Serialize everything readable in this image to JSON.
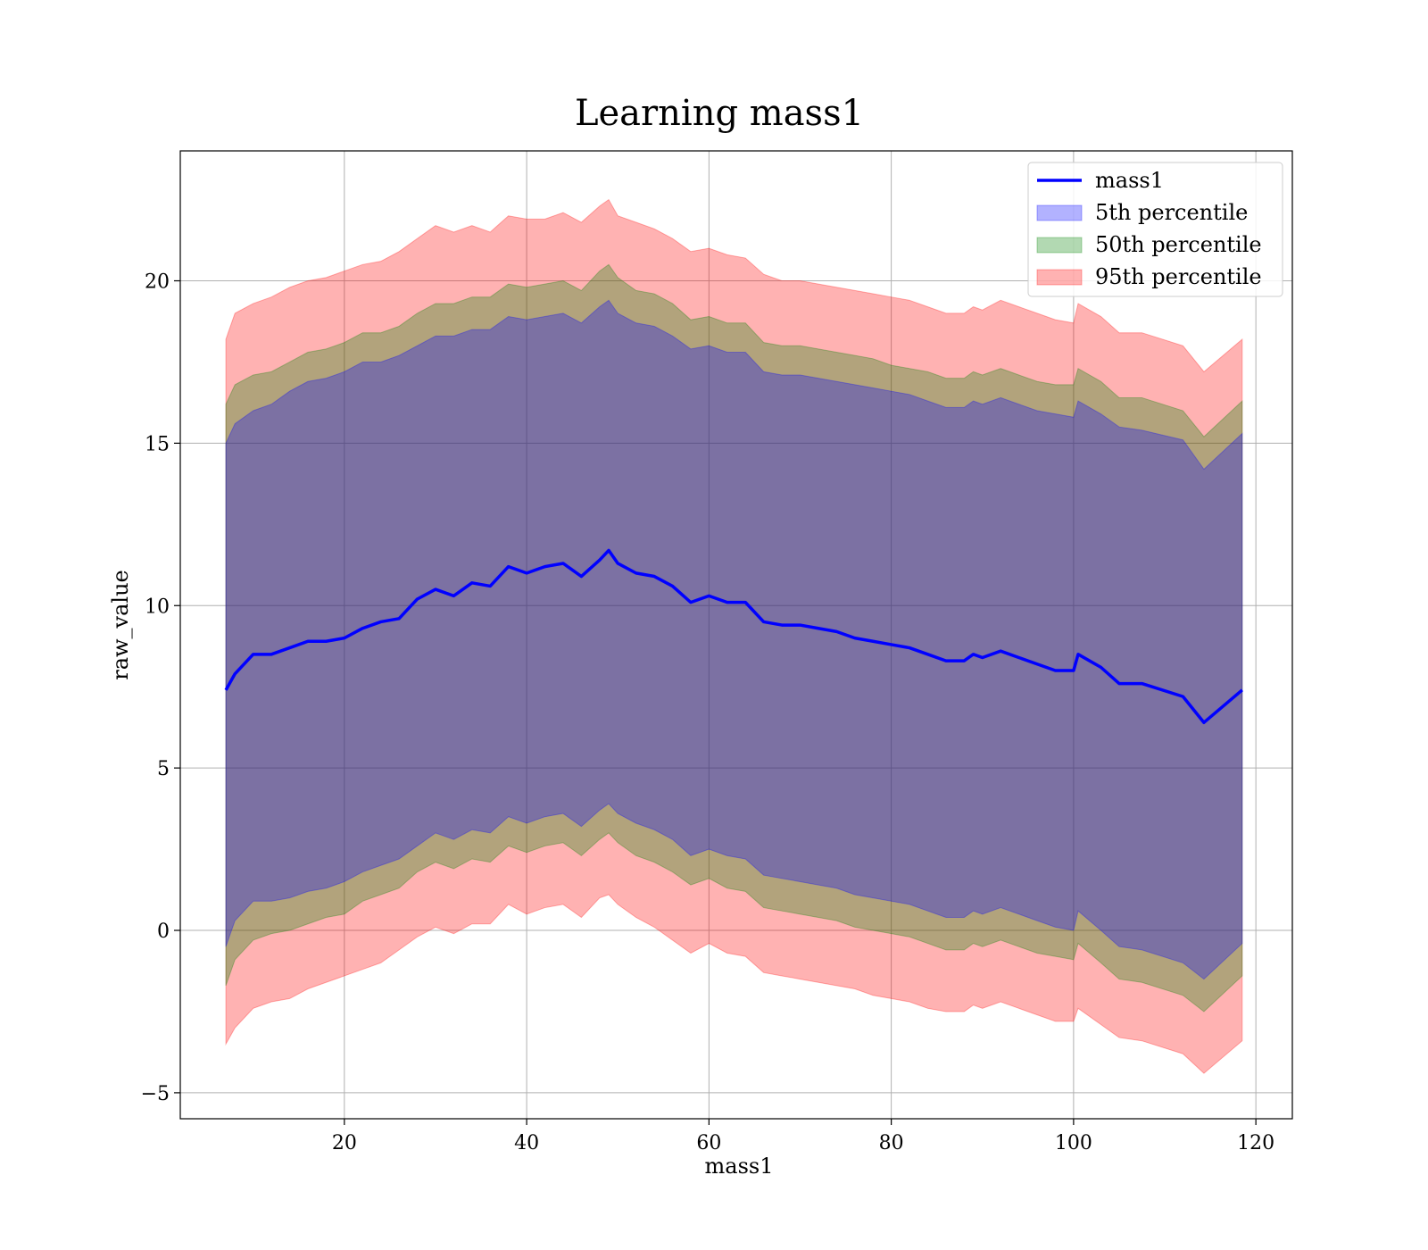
{
  "chart_data": {
    "type": "area",
    "title": "Learning mass1",
    "xlabel": "mass1",
    "ylabel": "raw_value",
    "xlim": [
      2,
      124
    ],
    "ylim": [
      -5.8,
      24
    ],
    "xticks": [
      20,
      40,
      60,
      80,
      100,
      120
    ],
    "yticks": [
      -5,
      0,
      5,
      10,
      15,
      20
    ],
    "grid": true,
    "legend_position": "top-right",
    "x": [
      7,
      8,
      10,
      12,
      14,
      16,
      18,
      20,
      22,
      24,
      26,
      28,
      30,
      32,
      34,
      36,
      38,
      40,
      42,
      44,
      46,
      48,
      49,
      50,
      52,
      54,
      56,
      58,
      60,
      62,
      64,
      66,
      68,
      70,
      72,
      74,
      76,
      78,
      80,
      82,
      84,
      86,
      88,
      89,
      90,
      92,
      94,
      96,
      98,
      100,
      100.5,
      103,
      105,
      107.5,
      112,
      114.3,
      118.5
    ],
    "series": [
      {
        "name": "mass1",
        "kind": "line",
        "color": "#0000ff",
        "values": [
          7.4,
          7.9,
          8.5,
          8.5,
          8.7,
          8.9,
          8.9,
          9.0,
          9.3,
          9.5,
          9.6,
          10.2,
          10.5,
          10.3,
          10.7,
          10.6,
          11.2,
          11.0,
          11.2,
          11.3,
          10.9,
          11.4,
          11.7,
          11.3,
          11.0,
          10.9,
          10.6,
          10.1,
          10.3,
          10.1,
          10.1,
          9.5,
          9.4,
          9.4,
          9.3,
          9.2,
          9.0,
          8.9,
          8.8,
          8.7,
          8.5,
          8.3,
          8.3,
          8.5,
          8.4,
          8.6,
          8.4,
          8.2,
          8.0,
          8.0,
          8.5,
          8.1,
          7.6,
          7.6,
          7.2,
          6.4,
          7.4
        ]
      },
      {
        "name": "5th percentile",
        "kind": "band",
        "color": "#0000ff",
        "upper": [
          15.0,
          15.6,
          16.0,
          16.2,
          16.6,
          16.9,
          17.0,
          17.2,
          17.5,
          17.5,
          17.7,
          18.0,
          18.3,
          18.3,
          18.5,
          18.5,
          18.9,
          18.8,
          18.9,
          19.0,
          18.7,
          19.2,
          19.4,
          19.0,
          18.7,
          18.6,
          18.3,
          17.9,
          18.0,
          17.8,
          17.8,
          17.2,
          17.1,
          17.1,
          17.0,
          16.9,
          16.8,
          16.7,
          16.6,
          16.5,
          16.3,
          16.1,
          16.1,
          16.3,
          16.2,
          16.4,
          16.2,
          16.0,
          15.9,
          15.8,
          16.3,
          15.9,
          15.5,
          15.4,
          15.1,
          14.2,
          15.3
        ],
        "lower": [
          -0.5,
          0.3,
          0.9,
          0.9,
          1.0,
          1.2,
          1.3,
          1.5,
          1.8,
          2.0,
          2.2,
          2.6,
          3.0,
          2.8,
          3.1,
          3.0,
          3.5,
          3.3,
          3.5,
          3.6,
          3.2,
          3.7,
          3.9,
          3.6,
          3.3,
          3.1,
          2.8,
          2.3,
          2.5,
          2.3,
          2.2,
          1.7,
          1.6,
          1.5,
          1.4,
          1.3,
          1.1,
          1.0,
          0.9,
          0.8,
          0.6,
          0.4,
          0.4,
          0.6,
          0.5,
          0.7,
          0.5,
          0.3,
          0.1,
          0.0,
          0.6,
          0.0,
          -0.5,
          -0.6,
          -1.0,
          -1.5,
          -0.4
        ]
      },
      {
        "name": "50th percentile",
        "kind": "band",
        "color": "#008000",
        "upper": [
          16.2,
          16.8,
          17.1,
          17.2,
          17.5,
          17.8,
          17.9,
          18.1,
          18.4,
          18.4,
          18.6,
          19.0,
          19.3,
          19.3,
          19.5,
          19.5,
          19.9,
          19.8,
          19.9,
          20.0,
          19.7,
          20.3,
          20.5,
          20.1,
          19.7,
          19.6,
          19.3,
          18.8,
          18.9,
          18.7,
          18.7,
          18.1,
          18.0,
          18.0,
          17.9,
          17.8,
          17.7,
          17.6,
          17.4,
          17.3,
          17.2,
          17.0,
          17.0,
          17.2,
          17.1,
          17.3,
          17.1,
          16.9,
          16.8,
          16.8,
          17.3,
          16.9,
          16.4,
          16.4,
          16.0,
          15.2,
          16.3
        ],
        "lower": [
          -1.7,
          -0.9,
          -0.3,
          -0.1,
          0.0,
          0.2,
          0.4,
          0.5,
          0.9,
          1.1,
          1.3,
          1.8,
          2.1,
          1.9,
          2.2,
          2.1,
          2.6,
          2.4,
          2.6,
          2.7,
          2.3,
          2.8,
          3.0,
          2.7,
          2.3,
          2.1,
          1.8,
          1.4,
          1.6,
          1.3,
          1.2,
          0.7,
          0.6,
          0.5,
          0.4,
          0.3,
          0.1,
          0.0,
          -0.1,
          -0.2,
          -0.4,
          -0.6,
          -0.6,
          -0.4,
          -0.5,
          -0.3,
          -0.5,
          -0.7,
          -0.8,
          -0.9,
          -0.4,
          -1.0,
          -1.5,
          -1.6,
          -2.0,
          -2.5,
          -1.4
        ]
      },
      {
        "name": "95th percentile",
        "kind": "band",
        "color": "#ff0000",
        "upper": [
          18.2,
          19.0,
          19.3,
          19.5,
          19.8,
          20.0,
          20.1,
          20.3,
          20.5,
          20.6,
          20.9,
          21.3,
          21.7,
          21.5,
          21.7,
          21.5,
          22.0,
          21.9,
          21.9,
          22.1,
          21.8,
          22.3,
          22.5,
          22.0,
          21.8,
          21.6,
          21.3,
          20.9,
          21.0,
          20.8,
          20.7,
          20.2,
          20.0,
          20.0,
          19.9,
          19.8,
          19.7,
          19.6,
          19.5,
          19.4,
          19.2,
          19.0,
          19.0,
          19.2,
          19.1,
          19.4,
          19.2,
          19.0,
          18.8,
          18.7,
          19.3,
          18.9,
          18.4,
          18.4,
          18.0,
          17.2,
          18.2
        ],
        "lower": [
          -3.5,
          -3.0,
          -2.4,
          -2.2,
          -2.1,
          -1.8,
          -1.6,
          -1.4,
          -1.2,
          -1.0,
          -0.6,
          -0.2,
          0.1,
          -0.1,
          0.2,
          0.2,
          0.8,
          0.5,
          0.7,
          0.8,
          0.4,
          1.0,
          1.1,
          0.8,
          0.4,
          0.1,
          -0.3,
          -0.7,
          -0.4,
          -0.7,
          -0.8,
          -1.3,
          -1.4,
          -1.5,
          -1.6,
          -1.7,
          -1.8,
          -2.0,
          -2.1,
          -2.2,
          -2.4,
          -2.5,
          -2.5,
          -2.3,
          -2.4,
          -2.2,
          -2.4,
          -2.6,
          -2.8,
          -2.8,
          -2.4,
          -2.9,
          -3.3,
          -3.4,
          -3.8,
          -4.4,
          -3.4
        ]
      }
    ]
  }
}
